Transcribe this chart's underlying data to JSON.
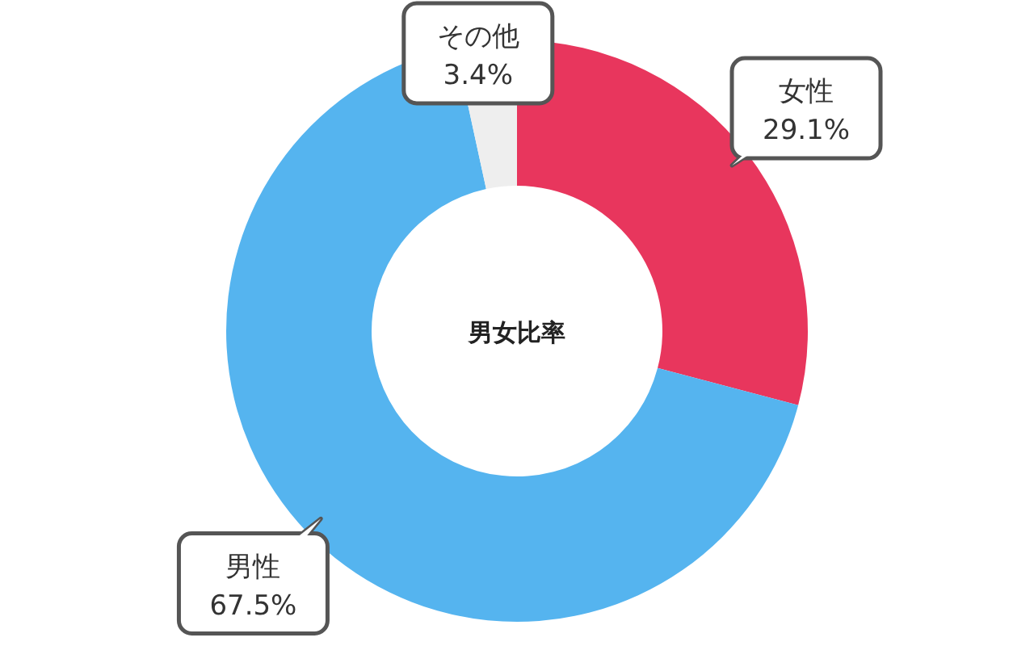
{
  "chart_data": {
    "type": "donut",
    "title": "男女比率",
    "categories": [
      "女性",
      "男性",
      "その他"
    ],
    "values": [
      29.1,
      67.5,
      3.4
    ],
    "value_labels": [
      "29.1%",
      "67.5%",
      "3.4%"
    ],
    "colors": [
      "#e8365d",
      "#55b4ef",
      "#eeeeee"
    ]
  }
}
